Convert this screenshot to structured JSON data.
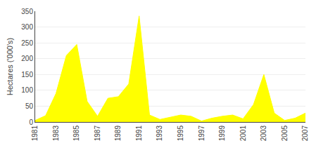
{
  "chart_data": {
    "type": "area",
    "x": [
      1981,
      1982,
      1983,
      1984,
      1985,
      1986,
      1987,
      1988,
      1989,
      1990,
      1991,
      1992,
      1993,
      1994,
      1995,
      1996,
      1997,
      1998,
      1999,
      2000,
      2001,
      2002,
      2003,
      2004,
      2005,
      2006,
      2007
    ],
    "values": [
      5,
      20,
      90,
      210,
      245,
      65,
      18,
      75,
      80,
      120,
      335,
      22,
      8,
      15,
      22,
      18,
      3,
      12,
      18,
      22,
      10,
      55,
      150,
      28,
      5,
      12,
      28
    ],
    "color": "#ffff00",
    "y_label": "Hectares ('000's)",
    "xlim": [
      1981,
      2007
    ],
    "xticks": [
      1981,
      1983,
      1985,
      1987,
      1989,
      1991,
      1993,
      1995,
      1997,
      1999,
      2001,
      2003,
      2005,
      2007
    ],
    "ylim": [
      0,
      350
    ],
    "yticks": [
      0,
      50,
      100,
      150,
      200,
      250,
      300,
      350
    ],
    "grid": true
  }
}
